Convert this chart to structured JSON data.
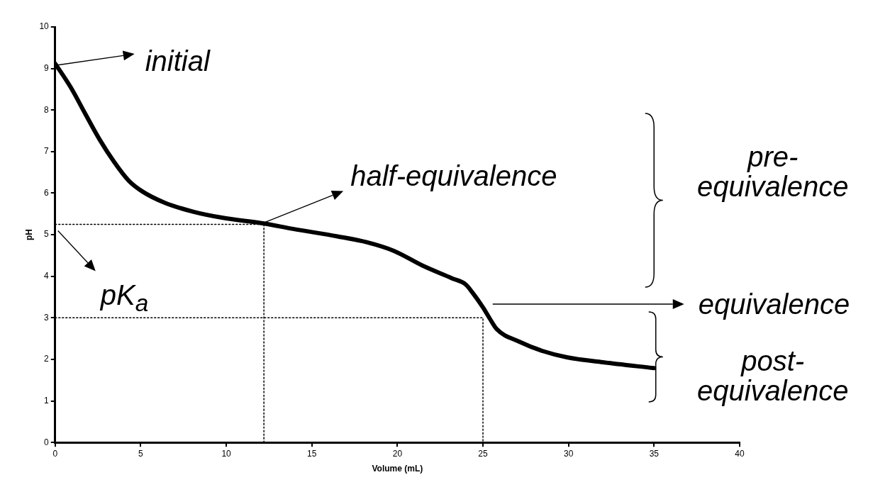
{
  "chart_data": {
    "type": "line",
    "xlabel": "Volume (mL)",
    "ylabel": "pH",
    "xlim": [
      0,
      40
    ],
    "ylim": [
      0,
      10
    ],
    "xticks": [
      0,
      5,
      10,
      15,
      20,
      25,
      30,
      35,
      40
    ],
    "yticks": [
      0,
      1,
      2,
      3,
      4,
      5,
      6,
      7,
      8,
      9,
      10
    ],
    "marker": "none",
    "series": [
      {
        "color": "#000000",
        "x": [
          0,
          0.92,
          1.76,
          2.6,
          3.45,
          4.3,
          5.1,
          6.4,
          8.1,
          9.75,
          12.2,
          13.9,
          16.5,
          18.2,
          19.8,
          21.5,
          23.2,
          24.0,
          24.4,
          25.0,
          25.4,
          25.8,
          27.1,
          28.5,
          29.9,
          32.0,
          35.0
        ],
        "values": [
          9.12,
          8.54,
          7.91,
          7.29,
          6.75,
          6.3,
          6.04,
          5.77,
          5.55,
          5.41,
          5.27,
          5.14,
          4.96,
          4.82,
          4.61,
          4.25,
          3.95,
          3.8,
          3.6,
          3.25,
          2.98,
          2.73,
          2.43,
          2.2,
          2.05,
          1.93,
          1.79
        ]
      },
      {
        "type": "line",
        "color": "#000000",
        "line_style": "dotted",
        "x": [
          0,
          12.2,
          12.2
        ],
        "values": [
          5.25,
          5.25,
          0
        ]
      },
      {
        "type": "line",
        "color": "#000000",
        "line_style": "dotted",
        "x": [
          0,
          25,
          25
        ],
        "values": [
          3,
          3,
          0
        ]
      }
    ],
    "annotations": [
      "initial",
      {
        "text": "half-equivalence",
        "x": 12.2,
        "y": 5.25
      },
      "equivalence",
      {
        "text": "pK$_{a}$",
        "x": 0,
        "y": 5.25
      },
      "pre-equivalence",
      "post-equivalence"
    ]
  }
}
